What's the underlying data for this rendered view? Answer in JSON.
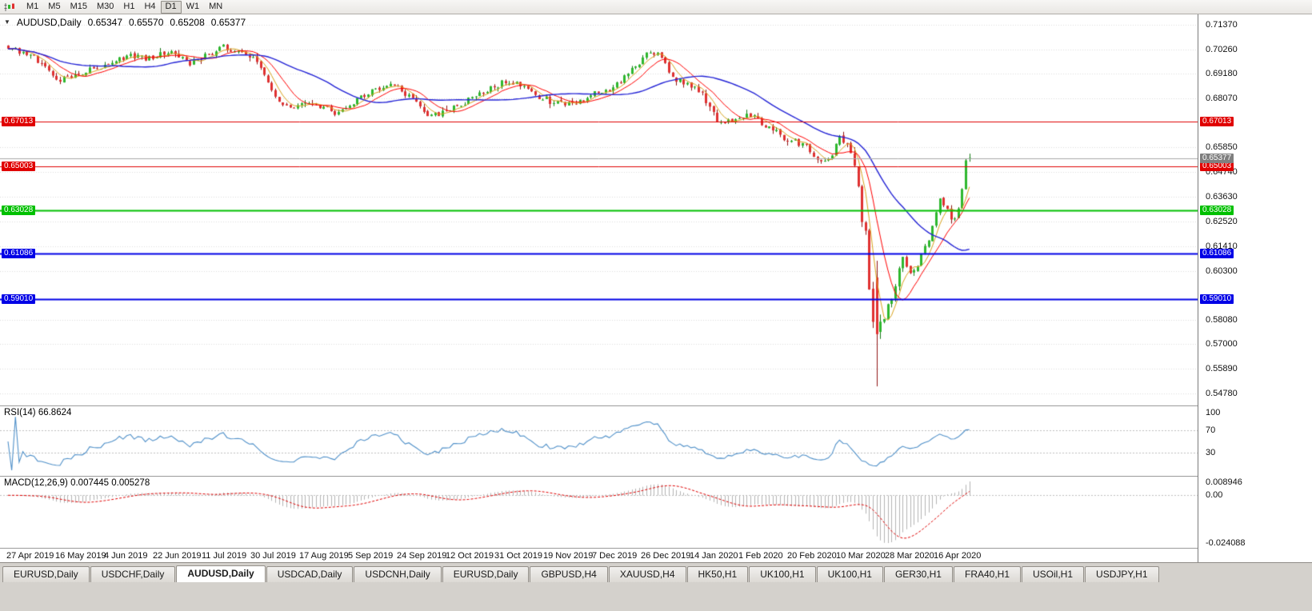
{
  "toolbar": {
    "timeframes": [
      {
        "label": "M1",
        "active": false
      },
      {
        "label": "M5",
        "active": false
      },
      {
        "label": "M15",
        "active": false
      },
      {
        "label": "M30",
        "active": false
      },
      {
        "label": "H1",
        "active": false
      },
      {
        "label": "H4",
        "active": false
      },
      {
        "label": "D1",
        "active": true
      },
      {
        "label": "W1",
        "active": false
      },
      {
        "label": "MN",
        "active": false
      }
    ]
  },
  "chart": {
    "symbol_label": "AUDUSD,Daily",
    "collapse_icon": "▼",
    "ohlc": {
      "open": "0.65347",
      "high": "0.65570",
      "low": "0.65208",
      "close": "0.65377"
    }
  },
  "price_axis": {
    "labels": [
      "0.71370",
      "0.70260",
      "0.69180",
      "0.68070",
      "0.65850",
      "0.64740",
      "0.63630",
      "0.62520",
      "0.61410",
      "0.60300",
      "0.58080",
      "0.57000",
      "0.55890",
      "0.54780"
    ],
    "current_price": {
      "value": "0.65377",
      "color": "#7f7f7f"
    }
  },
  "levels": [
    {
      "value": "0.67013",
      "price": 0.67013,
      "color": "#e00000",
      "width": 1
    },
    {
      "value": "0.65003",
      "price": 0.65003,
      "color": "#e00000",
      "width": 1
    },
    {
      "value": "0.63028",
      "price": 0.63028,
      "color": "#00c000",
      "width": 2
    },
    {
      "value": "0.61086",
      "price": 0.61086,
      "color": "#0000e6",
      "width": 2
    },
    {
      "value": "0.59010",
      "price": 0.5901,
      "color": "#0000e6",
      "width": 2
    }
  ],
  "time_axis": {
    "labels": [
      "27 Apr 2019",
      "16 May 2019",
      "4 Jun 2019",
      "22 Jun 2019",
      "11 Jul 2019",
      "30 Jul 2019",
      "17 Aug 2019",
      "5 Sep 2019",
      "24 Sep 2019",
      "12 Oct 2019",
      "31 Oct 2019",
      "19 Nov 2019",
      "7 Dec 2019",
      "26 Dec 2019",
      "14 Jan 2020",
      "1 Feb 2020",
      "20 Feb 2020",
      "10 Mar 2020",
      "28 Mar 2020",
      "16 Apr 2020"
    ]
  },
  "rsi": {
    "label": "RSI(14) 66.8624",
    "axis_labels": [
      "100",
      "70",
      "30"
    ],
    "level_lines": [
      70,
      30
    ],
    "line_color": "#4f90c9"
  },
  "macd": {
    "label": "MACD(12,26,9) 0.007445 0.005278",
    "axis_labels": [
      "0.008946",
      "0.00",
      "-0.024088"
    ],
    "histogram_color": "#b3b3b3",
    "signal_color": "#e00000"
  },
  "tabs": [
    {
      "label": "EURUSD,Daily",
      "active": false
    },
    {
      "label": "USDCHF,Daily",
      "active": false
    },
    {
      "label": "AUDUSD,Daily",
      "active": true
    },
    {
      "label": "USDCAD,Daily",
      "active": false
    },
    {
      "label": "USDCNH,Daily",
      "active": false
    },
    {
      "label": "EURUSD,Daily",
      "active": false
    },
    {
      "label": "GBPUSD,H4",
      "active": false
    },
    {
      "label": "XAUUSD,H4",
      "active": false
    },
    {
      "label": "HK50,H1",
      "active": false
    },
    {
      "label": "UK100,H1",
      "active": false
    },
    {
      "label": "UK100,H1",
      "active": false
    },
    {
      "label": "GER30,H1",
      "active": false
    },
    {
      "label": "FRA40,H1",
      "active": false
    },
    {
      "label": "USOil,H1",
      "active": false
    },
    {
      "label": "USDJPY,H1",
      "active": false
    }
  ],
  "chart_data": {
    "type": "candlestick",
    "symbol": "AUDUSD",
    "timeframe": "Daily",
    "price_range": {
      "top": 0.7137,
      "bottom": 0.5478
    },
    "candle_count": 260,
    "bull_color": "#2eb82e",
    "bear_color": "#e03030",
    "bull_edge": "#157a15",
    "bear_edge": "#8f1414",
    "grid_color": "#dcdcdc",
    "price_path": [
      [
        0.0,
        0.7035
      ],
      [
        0.02,
        0.7008
      ],
      [
        0.04,
        0.695
      ],
      [
        0.054,
        0.6885
      ],
      [
        0.075,
        0.6925
      ],
      [
        0.1,
        0.6945
      ],
      [
        0.121,
        0.6995
      ],
      [
        0.145,
        0.6985
      ],
      [
        0.166,
        0.7018
      ],
      [
        0.191,
        0.6965
      ],
      [
        0.21,
        0.7008
      ],
      [
        0.225,
        0.7038
      ],
      [
        0.245,
        0.7008
      ],
      [
        0.258,
        0.6975
      ],
      [
        0.27,
        0.687
      ],
      [
        0.28,
        0.68
      ],
      [
        0.291,
        0.6755
      ],
      [
        0.305,
        0.679
      ],
      [
        0.325,
        0.6775
      ],
      [
        0.34,
        0.6745
      ],
      [
        0.352,
        0.6762
      ],
      [
        0.374,
        0.6835
      ],
      [
        0.399,
        0.6872
      ],
      [
        0.412,
        0.683
      ],
      [
        0.424,
        0.678
      ],
      [
        0.438,
        0.6716
      ],
      [
        0.452,
        0.6745
      ],
      [
        0.47,
        0.6772
      ],
      [
        0.487,
        0.6825
      ],
      [
        0.503,
        0.6858
      ],
      [
        0.52,
        0.6885
      ],
      [
        0.532,
        0.6872
      ],
      [
        0.55,
        0.682
      ],
      [
        0.566,
        0.679
      ],
      [
        0.58,
        0.6775
      ],
      [
        0.595,
        0.6798
      ],
      [
        0.61,
        0.6825
      ],
      [
        0.624,
        0.684
      ],
      [
        0.64,
        0.6902
      ],
      [
        0.655,
        0.6958
      ],
      [
        0.668,
        0.7022
      ],
      [
        0.678,
        0.699
      ],
      [
        0.69,
        0.6905
      ],
      [
        0.705,
        0.6875
      ],
      [
        0.72,
        0.684
      ],
      [
        0.737,
        0.6712
      ],
      [
        0.753,
        0.6695
      ],
      [
        0.77,
        0.6738
      ],
      [
        0.79,
        0.668
      ],
      [
        0.81,
        0.6622
      ],
      [
        0.828,
        0.6598
      ],
      [
        0.84,
        0.6545
      ],
      [
        0.852,
        0.6512
      ],
      [
        0.865,
        0.6628
      ],
      [
        0.876,
        0.6578
      ],
      [
        0.886,
        0.633
      ],
      [
        0.892,
        0.6168
      ],
      [
        0.898,
        0.5782
      ],
      [
        0.903,
        0.5745
      ],
      [
        0.908,
        0.5802
      ],
      [
        0.915,
        0.5878
      ],
      [
        0.923,
        0.5962
      ],
      [
        0.93,
        0.6138
      ],
      [
        0.937,
        0.6002
      ],
      [
        0.944,
        0.6038
      ],
      [
        0.952,
        0.6125
      ],
      [
        0.96,
        0.6188
      ],
      [
        0.968,
        0.6358
      ],
      [
        0.976,
        0.6302
      ],
      [
        0.983,
        0.6256
      ],
      [
        0.99,
        0.634
      ],
      [
        0.996,
        0.647
      ],
      [
        1.0,
        0.6537
      ]
    ],
    "crash_candle": {
      "t": 0.903,
      "open": 0.6,
      "high": 0.6075,
      "low": 0.551,
      "close": 0.5745
    },
    "last_ohlc": {
      "open": 0.65347,
      "high": 0.6557,
      "low": 0.65208,
      "close": 0.65377
    },
    "moving_averages": [
      {
        "period": 5,
        "color": "#d9a21b",
        "width": 1
      },
      {
        "period": 10,
        "color": "#ff0000",
        "width": 1
      },
      {
        "period": 30,
        "color": "#2424d6",
        "width": 1.4
      }
    ],
    "rsi_value": 66.8624,
    "macd_value": 0.007445,
    "macd_signal_value": 0.005278
  }
}
